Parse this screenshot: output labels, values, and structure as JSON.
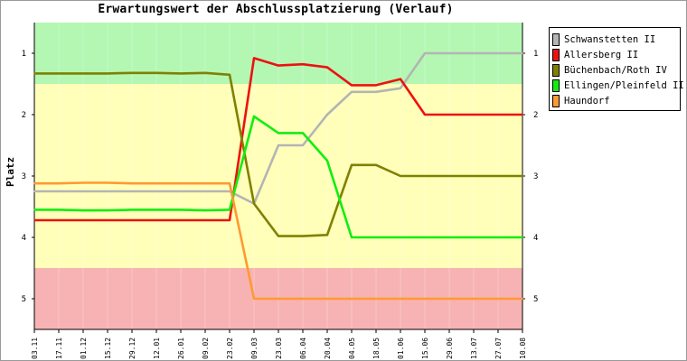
{
  "chart_data": {
    "type": "line",
    "title": "Erwartungswert der Abschlussplatzierung (Verlauf)",
    "ylabel": "Platz",
    "xlabel": "",
    "ylim": [
      5.5,
      0.5
    ],
    "y_inverted": true,
    "yticks": [
      1,
      2,
      3,
      4,
      5
    ],
    "right_axis_labels": true,
    "zones": [
      {
        "from": 0.5,
        "to": 1.5,
        "color": "#b3f7b3"
      },
      {
        "from": 1.5,
        "to": 4.5,
        "color": "#ffffba"
      },
      {
        "from": 4.5,
        "to": 5.5,
        "color": "#f7b3b3"
      }
    ],
    "categories": [
      "03.11",
      "17.11",
      "01.12",
      "15.12",
      "29.12",
      "12.01",
      "26.01",
      "09.02",
      "23.02",
      "09.03",
      "23.03",
      "06.04",
      "20.04",
      "04.05",
      "18.05",
      "01.06",
      "15.06",
      "29.06",
      "13.07",
      "27.07",
      "10.08"
    ],
    "series": [
      {
        "name": "Schwanstetten II",
        "color": "#b4b4b4",
        "values": [
          3.25,
          3.25,
          3.25,
          3.25,
          3.25,
          3.25,
          3.25,
          3.25,
          3.25,
          3.45,
          2.5,
          2.5,
          2.0,
          1.63,
          1.63,
          1.57,
          1.0,
          1.0,
          1.0,
          1.0,
          1.0
        ]
      },
      {
        "name": "Allersberg II",
        "color": "#ee1111",
        "values": [
          3.72,
          3.72,
          3.72,
          3.72,
          3.72,
          3.72,
          3.72,
          3.72,
          3.72,
          1.08,
          1.2,
          1.18,
          1.23,
          1.52,
          1.52,
          1.42,
          2.0,
          2.0,
          2.0,
          2.0,
          2.0
        ]
      },
      {
        "name": "Büchenbach/Roth IV",
        "color": "#808000",
        "values": [
          1.33,
          1.33,
          1.33,
          1.33,
          1.32,
          1.32,
          1.33,
          1.32,
          1.35,
          3.45,
          3.98,
          3.98,
          3.96,
          2.82,
          2.82,
          3.0,
          3.0,
          3.0,
          3.0,
          3.0,
          3.0
        ]
      },
      {
        "name": "Ellingen/Pleinfeld II",
        "color": "#11ee11",
        "values": [
          3.55,
          3.55,
          3.56,
          3.56,
          3.55,
          3.55,
          3.55,
          3.56,
          3.55,
          2.03,
          2.3,
          2.3,
          2.75,
          4.0,
          4.0,
          4.0,
          4.0,
          4.0,
          4.0,
          4.0,
          4.0
        ]
      },
      {
        "name": "Haundorf",
        "color": "#ff9933",
        "values": [
          3.12,
          3.12,
          3.11,
          3.11,
          3.12,
          3.12,
          3.12,
          3.12,
          3.12,
          5.0,
          5.0,
          5.0,
          5.0,
          5.0,
          5.0,
          5.0,
          5.0,
          5.0,
          5.0,
          5.0,
          5.0
        ]
      }
    ],
    "legend_position": "right"
  }
}
